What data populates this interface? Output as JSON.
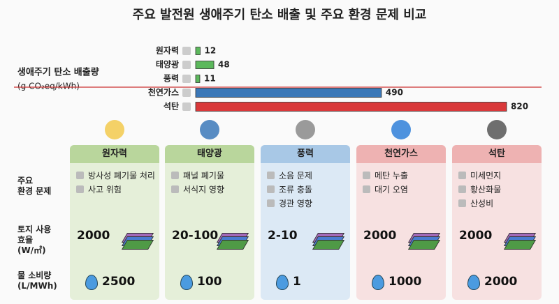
{
  "chart_data": {
    "type": "hbar",
    "title": "주요 발전원 생애주기 탄소 배출 및 주요 환경 문제 비교",
    "y_label": "생애주기 탄소 배출량",
    "unit": "(g CO₂eq/kWh)",
    "categories": [
      "원자력",
      "태양광",
      "풍력",
      "천연가스",
      "석탄"
    ],
    "values": [
      12,
      48,
      11,
      490,
      820
    ],
    "colors": [
      "#5cb85c",
      "#5cb85c",
      "#5cb85c",
      "#3b78b8",
      "#d9383a"
    ],
    "xlim": [
      0,
      820
    ]
  },
  "comparison": {
    "row_labels": [
      [
        "주요",
        "환경 문제"
      ],
      [
        "토지 사용",
        "효율",
        "(W/㎡)"
      ],
      [
        "물 소비량",
        "(L/MWh)"
      ]
    ],
    "columns": [
      {
        "name": "원자력",
        "issues": [
          "방사성 폐기물 처리",
          "사고 위험"
        ],
        "land_use": "2000",
        "water": 2500
      },
      {
        "name": "태양광",
        "issues": [
          "패널 폐기물",
          "서식지 영향"
        ],
        "land_use": "20-100",
        "water": 100
      },
      {
        "name": "풍력",
        "issues": [
          "소음 문제",
          "조류 충돌",
          "경관 영향"
        ],
        "land_use": "2-10",
        "water": 1
      },
      {
        "name": "천연가스",
        "issues": [
          "메탄 누출",
          "대기 오염"
        ],
        "land_use": "2000",
        "water": 1000
      },
      {
        "name": "석탄",
        "issues": [
          "미세먼지",
          "황산화물",
          "산성비"
        ],
        "land_use": "2000",
        "water": 2000
      }
    ]
  }
}
